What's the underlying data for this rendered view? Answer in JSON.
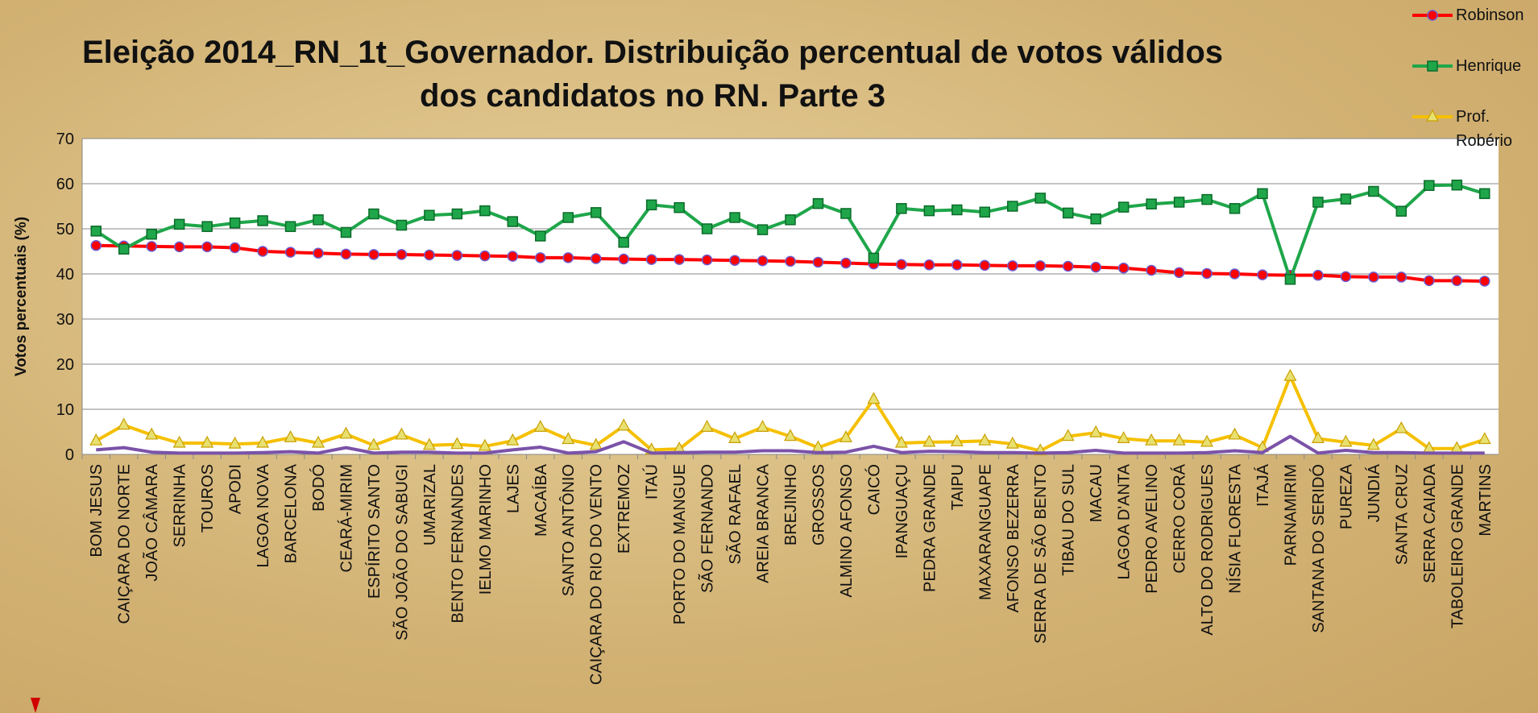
{
  "chart_data": {
    "type": "line",
    "title": "Eleição 2014_RN_1t_Governador. Distribuição percentual de votos válidos\ndos candidatos no RN. Parte 3",
    "y_label": "Votos percentuais (%)",
    "categories": [
      "BOM JESUS",
      "CAIÇARA DO NORTE",
      "JOÃO CÂMARA",
      "SERRINHA",
      "TOUROS",
      "APODI",
      "LAGOA NOVA",
      "BARCELONA",
      "BODÓ",
      "CEARÁ-MIRIM",
      "ESPÍRITO SANTO",
      "SÃO JOÃO DO SABUGI",
      "UMARIZAL",
      "BENTO FERNANDES",
      "IELMO MARINHO",
      "LAJES",
      "MACAÍBA",
      "SANTO ANTÔNIO",
      "CAIÇARA DO RIO DO VENTO",
      "EXTREMOZ",
      "ITAÚ",
      "PORTO DO MANGUE",
      "SÃO FERNANDO",
      "SÃO RAFAEL",
      "AREIA BRANCA",
      "BREJINHO",
      "GROSSOS",
      "ALMINO AFONSO",
      "CAICÓ",
      "IPANGUAÇU",
      "PEDRA GRANDE",
      "TAIPU",
      "MAXARANGUAPE",
      "AFONSO BEZERRA",
      "SERRA DE SÃO BENTO",
      "TIBAU DO SUL",
      "MACAU",
      "LAGOA D'ANTA",
      "PEDRO AVELINO",
      "CERRO CORÁ",
      "ALTO DO RODRIGUES",
      "NÍSIA FLORESTA",
      "ITAJÁ",
      "PARNAMIRIM",
      "SANTANA DO SERIDÓ",
      "PUREZA",
      "JUNDIÁ",
      "SANTA CRUZ",
      "SERRA CAIADA",
      "TABOLEIRO GRANDE",
      "MARTINS"
    ],
    "series": [
      {
        "name": "Robinson",
        "color": "#ff0000",
        "marker": "circle",
        "values": [
          46.3,
          46.2,
          46.1,
          46.0,
          46.0,
          45.8,
          45.0,
          44.8,
          44.6,
          44.4,
          44.3,
          44.3,
          44.2,
          44.1,
          44.0,
          43.9,
          43.6,
          43.6,
          43.4,
          43.3,
          43.2,
          43.2,
          43.1,
          43.0,
          42.9,
          42.8,
          42.6,
          42.4,
          42.2,
          42.1,
          42.0,
          42.0,
          41.9,
          41.8,
          41.8,
          41.7,
          41.5,
          41.3,
          40.8,
          40.3,
          40.1,
          40.0,
          39.8,
          39.7,
          39.7,
          39.4,
          39.3,
          39.3,
          38.5,
          38.5,
          38.4
        ]
      },
      {
        "name": "Henrique",
        "color": "#1fa64a",
        "marker": "square",
        "values": [
          49.5,
          45.5,
          48.8,
          51.0,
          50.5,
          51.3,
          51.8,
          50.5,
          52.0,
          49.2,
          53.3,
          50.8,
          53.0,
          53.3,
          54.0,
          51.6,
          48.4,
          52.5,
          53.6,
          47.0,
          55.3,
          54.7,
          50.0,
          52.5,
          49.8,
          52.0,
          55.6,
          53.4,
          43.5,
          54.5,
          54.0,
          54.2,
          53.7,
          55.0,
          56.8,
          53.5,
          52.2,
          54.8,
          55.5,
          55.9,
          56.5,
          54.5,
          57.8,
          38.8,
          55.9,
          56.6,
          58.3,
          53.9,
          59.6,
          59.7,
          57.8
        ]
      },
      {
        "name": "Prof. Robério",
        "color": "#f5c000",
        "marker": "triangle",
        "values": [
          3.0,
          6.5,
          4.3,
          2.5,
          2.5,
          2.3,
          2.5,
          3.7,
          2.5,
          4.5,
          2.0,
          4.3,
          2.0,
          2.2,
          1.8,
          3.0,
          6.0,
          3.3,
          2.0,
          6.3,
          1.0,
          1.2,
          6.0,
          3.5,
          6.0,
          4.0,
          1.5,
          3.7,
          12.2,
          2.5,
          2.7,
          2.8,
          3.0,
          2.3,
          0.8,
          4.0,
          4.8,
          3.5,
          3.0,
          3.0,
          2.7,
          4.3,
          1.5,
          17.3,
          3.5,
          2.7,
          2.0,
          5.7,
          1.3,
          1.3,
          3.3
        ]
      },
      {
        "color": "#7b52a8",
        "values": [
          1.0,
          1.5,
          0.5,
          0.3,
          0.3,
          0.3,
          0.4,
          0.6,
          0.3,
          1.5,
          0.3,
          0.5,
          0.5,
          0.3,
          0.3,
          1.0,
          1.6,
          0.3,
          0.6,
          2.8,
          0.3,
          0.4,
          0.5,
          0.5,
          0.8,
          0.8,
          0.4,
          0.5,
          1.8,
          0.4,
          0.7,
          0.6,
          0.4,
          0.4,
          0.3,
          0.4,
          0.9,
          0.3,
          0.3,
          0.3,
          0.4,
          0.8,
          0.4,
          4.0,
          0.3,
          0.9,
          0.4,
          0.4,
          0.3,
          0.3,
          0.3
        ]
      }
    ],
    "ylim": [
      0,
      70
    ],
    "yticks": [
      0,
      10,
      20,
      30,
      40,
      50,
      60,
      70
    ],
    "grid": true
  }
}
